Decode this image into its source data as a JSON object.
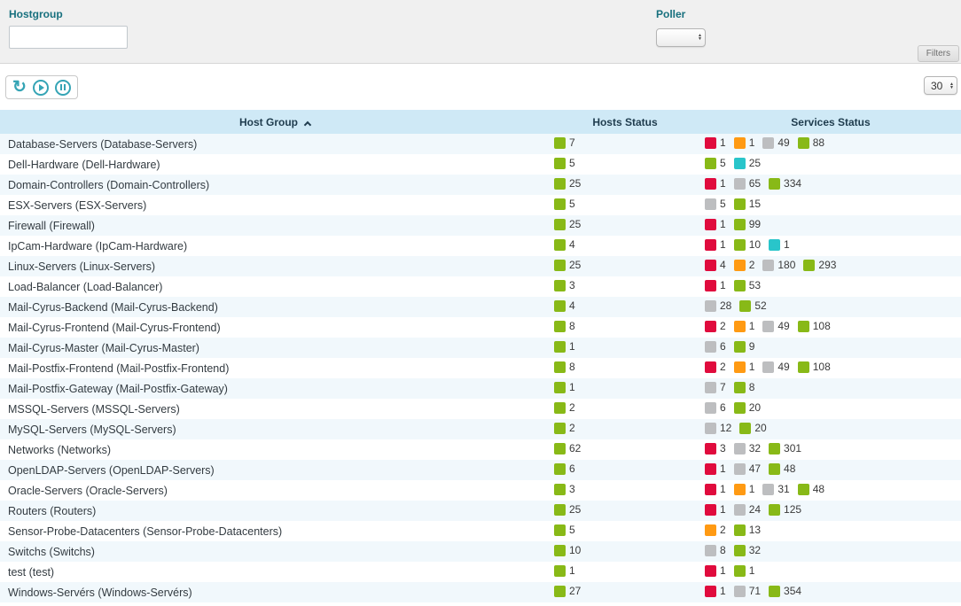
{
  "filters": {
    "hostgroup": {
      "label": "Hostgroup",
      "value": ""
    },
    "poller": {
      "label": "Poller",
      "value": ""
    },
    "filters_button_label": "Filters"
  },
  "toolbar": {
    "icons": [
      "refresh-icon",
      "play-icon",
      "pause-icon"
    ],
    "refresh_glyph": "↻",
    "page_size": "30"
  },
  "status_colors": {
    "green": "#88b917",
    "red": "#e00b3d",
    "orange": "#ff9a13",
    "gray": "#bdbec0",
    "cyan": "#29c5ca"
  },
  "table": {
    "columns": [
      "Host Group",
      "Hosts Status",
      "Services Status"
    ],
    "sort": {
      "column": "Host Group",
      "direction": "asc"
    },
    "rows": [
      {
        "name": "Database-Servers (Database-Servers)",
        "hosts": [
          {
            "color": "green",
            "value": 7
          }
        ],
        "services": [
          {
            "color": "red",
            "value": 1
          },
          {
            "color": "orange",
            "value": 1
          },
          {
            "color": "gray",
            "value": 49
          },
          {
            "color": "green",
            "value": 88
          }
        ]
      },
      {
        "name": "Dell-Hardware (Dell-Hardware)",
        "hosts": [
          {
            "color": "green",
            "value": 5
          }
        ],
        "services": [
          {
            "color": "green",
            "value": 5
          },
          {
            "color": "cyan",
            "value": 25
          }
        ]
      },
      {
        "name": "Domain-Controllers (Domain-Controllers)",
        "hosts": [
          {
            "color": "green",
            "value": 25
          }
        ],
        "services": [
          {
            "color": "red",
            "value": 1
          },
          {
            "color": "gray",
            "value": 65
          },
          {
            "color": "green",
            "value": 334
          }
        ]
      },
      {
        "name": "ESX-Servers (ESX-Servers)",
        "hosts": [
          {
            "color": "green",
            "value": 5
          }
        ],
        "services": [
          {
            "color": "gray",
            "value": 5
          },
          {
            "color": "green",
            "value": 15
          }
        ]
      },
      {
        "name": "Firewall (Firewall)",
        "hosts": [
          {
            "color": "green",
            "value": 25
          }
        ],
        "services": [
          {
            "color": "red",
            "value": 1
          },
          {
            "color": "green",
            "value": 99
          }
        ]
      },
      {
        "name": "IpCam-Hardware (IpCam-Hardware)",
        "hosts": [
          {
            "color": "green",
            "value": 4
          }
        ],
        "services": [
          {
            "color": "red",
            "value": 1
          },
          {
            "color": "green",
            "value": 10
          },
          {
            "color": "cyan",
            "value": 1
          }
        ]
      },
      {
        "name": "Linux-Servers (Linux-Servers)",
        "hosts": [
          {
            "color": "green",
            "value": 25
          }
        ],
        "services": [
          {
            "color": "red",
            "value": 4
          },
          {
            "color": "orange",
            "value": 2
          },
          {
            "color": "gray",
            "value": 180
          },
          {
            "color": "green",
            "value": 293
          }
        ]
      },
      {
        "name": "Load-Balancer (Load-Balancer)",
        "hosts": [
          {
            "color": "green",
            "value": 3
          }
        ],
        "services": [
          {
            "color": "red",
            "value": 1
          },
          {
            "color": "green",
            "value": 53
          }
        ]
      },
      {
        "name": "Mail-Cyrus-Backend (Mail-Cyrus-Backend)",
        "hosts": [
          {
            "color": "green",
            "value": 4
          }
        ],
        "services": [
          {
            "color": "gray",
            "value": 28
          },
          {
            "color": "green",
            "value": 52
          }
        ]
      },
      {
        "name": "Mail-Cyrus-Frontend (Mail-Cyrus-Frontend)",
        "hosts": [
          {
            "color": "green",
            "value": 8
          }
        ],
        "services": [
          {
            "color": "red",
            "value": 2
          },
          {
            "color": "orange",
            "value": 1
          },
          {
            "color": "gray",
            "value": 49
          },
          {
            "color": "green",
            "value": 108
          }
        ]
      },
      {
        "name": "Mail-Cyrus-Master (Mail-Cyrus-Master)",
        "hosts": [
          {
            "color": "green",
            "value": 1
          }
        ],
        "services": [
          {
            "color": "gray",
            "value": 6
          },
          {
            "color": "green",
            "value": 9
          }
        ]
      },
      {
        "name": "Mail-Postfix-Frontend (Mail-Postfix-Frontend)",
        "hosts": [
          {
            "color": "green",
            "value": 8
          }
        ],
        "services": [
          {
            "color": "red",
            "value": 2
          },
          {
            "color": "orange",
            "value": 1
          },
          {
            "color": "gray",
            "value": 49
          },
          {
            "color": "green",
            "value": 108
          }
        ]
      },
      {
        "name": "Mail-Postfix-Gateway (Mail-Postfix-Gateway)",
        "hosts": [
          {
            "color": "green",
            "value": 1
          }
        ],
        "services": [
          {
            "color": "gray",
            "value": 7
          },
          {
            "color": "green",
            "value": 8
          }
        ]
      },
      {
        "name": "MSSQL-Servers (MSSQL-Servers)",
        "hosts": [
          {
            "color": "green",
            "value": 2
          }
        ],
        "services": [
          {
            "color": "gray",
            "value": 6
          },
          {
            "color": "green",
            "value": 20
          }
        ]
      },
      {
        "name": "MySQL-Servers (MySQL-Servers)",
        "hosts": [
          {
            "color": "green",
            "value": 2
          }
        ],
        "services": [
          {
            "color": "gray",
            "value": 12
          },
          {
            "color": "green",
            "value": 20
          }
        ]
      },
      {
        "name": "Networks (Networks)",
        "hosts": [
          {
            "color": "green",
            "value": 62
          }
        ],
        "services": [
          {
            "color": "red",
            "value": 3
          },
          {
            "color": "gray",
            "value": 32
          },
          {
            "color": "green",
            "value": 301
          }
        ]
      },
      {
        "name": "OpenLDAP-Servers (OpenLDAP-Servers)",
        "hosts": [
          {
            "color": "green",
            "value": 6
          }
        ],
        "services": [
          {
            "color": "red",
            "value": 1
          },
          {
            "color": "gray",
            "value": 47
          },
          {
            "color": "green",
            "value": 48
          }
        ]
      },
      {
        "name": "Oracle-Servers (Oracle-Servers)",
        "hosts": [
          {
            "color": "green",
            "value": 3
          }
        ],
        "services": [
          {
            "color": "red",
            "value": 1
          },
          {
            "color": "orange",
            "value": 1
          },
          {
            "color": "gray",
            "value": 31
          },
          {
            "color": "green",
            "value": 48
          }
        ]
      },
      {
        "name": "Routers (Routers)",
        "hosts": [
          {
            "color": "green",
            "value": 25
          }
        ],
        "services": [
          {
            "color": "red",
            "value": 1
          },
          {
            "color": "gray",
            "value": 24
          },
          {
            "color": "green",
            "value": 125
          }
        ]
      },
      {
        "name": "Sensor-Probe-Datacenters (Sensor-Probe-Datacenters)",
        "hosts": [
          {
            "color": "green",
            "value": 5
          }
        ],
        "services": [
          {
            "color": "orange",
            "value": 2
          },
          {
            "color": "green",
            "value": 13
          }
        ]
      },
      {
        "name": "Switchs (Switchs)",
        "hosts": [
          {
            "color": "green",
            "value": 10
          }
        ],
        "services": [
          {
            "color": "gray",
            "value": 8
          },
          {
            "color": "green",
            "value": 32
          }
        ]
      },
      {
        "name": "test (test)",
        "hosts": [
          {
            "color": "green",
            "value": 1
          }
        ],
        "services": [
          {
            "color": "red",
            "value": 1
          },
          {
            "color": "green",
            "value": 1
          }
        ]
      },
      {
        "name": "Windows-Servérs (Windows-Servérs)",
        "hosts": [
          {
            "color": "green",
            "value": 27
          }
        ],
        "services": [
          {
            "color": "red",
            "value": 1
          },
          {
            "color": "gray",
            "value": 71
          },
          {
            "color": "green",
            "value": 354
          }
        ]
      }
    ]
  }
}
